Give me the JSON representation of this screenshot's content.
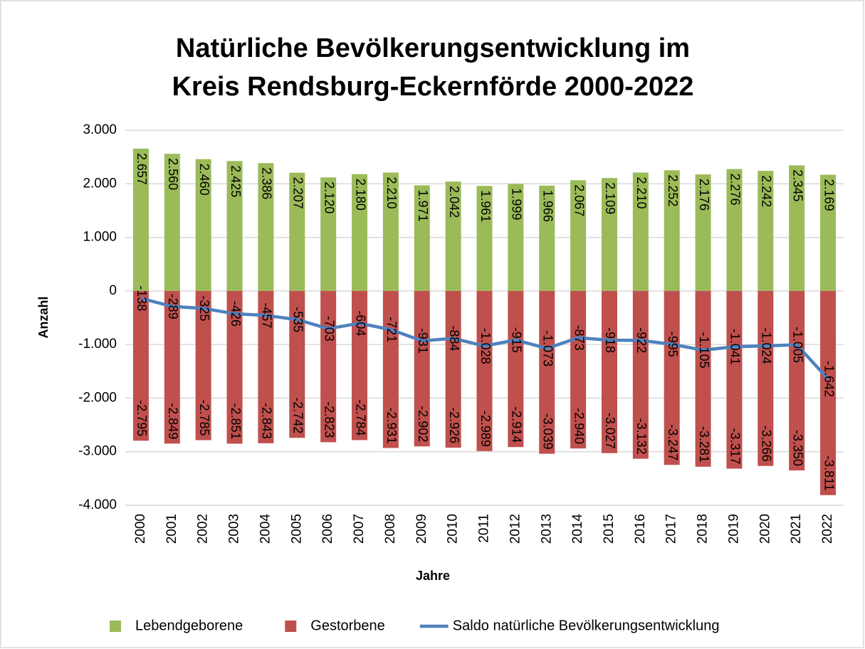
{
  "chart_data": {
    "type": "bar",
    "title": [
      "Natürliche Bevölkerungsentwicklung im",
      "Kreis Rendsburg-Eckernförde 2000-2022"
    ],
    "x_label": "Jahre",
    "y_label": "Anzahl",
    "categories": [
      "2000",
      "2001",
      "2002",
      "2003",
      "2004",
      "2005",
      "2006",
      "2007",
      "2008",
      "2009",
      "2010",
      "2011",
      "2012",
      "2013",
      "2014",
      "2015",
      "2016",
      "2017",
      "2018",
      "2019",
      "2020",
      "2021",
      "2022"
    ],
    "series": [
      {
        "name": "Lebendgeborene",
        "color": "#9bbb59",
        "type": "bar",
        "values": [
          2657,
          2560,
          2460,
          2425,
          2386,
          2207,
          2120,
          2180,
          2210,
          1971,
          2042,
          1961,
          1999,
          1966,
          2067,
          2109,
          2210,
          2252,
          2176,
          2276,
          2242,
          2345,
          2169
        ],
        "value_labels": [
          "2.657",
          "2.560",
          "2.460",
          "2.425",
          "2.386",
          "2.207",
          "2.120",
          "2.180",
          "2.210",
          "1.971",
          "2.042",
          "1.961",
          "1.999",
          "1.966",
          "2.067",
          "2.109",
          "2.210",
          "2.252",
          "2.176",
          "2.276",
          "2.242",
          "2.345",
          "2.169"
        ]
      },
      {
        "name": "Gestorbene",
        "color": "#c0504d",
        "type": "bar",
        "values": [
          -2795,
          -2849,
          -2785,
          -2851,
          -2843,
          -2742,
          -2823,
          -2784,
          -2931,
          -2902,
          -2926,
          -2989,
          -2914,
          -3039,
          -2940,
          -3027,
          -3132,
          -3247,
          -3281,
          -3317,
          -3266,
          -3350,
          -3811
        ],
        "value_labels": [
          "-2.795",
          "-2.849",
          "-2.785",
          "-2.851",
          "-2.843",
          "-2.742",
          "-2.823",
          "-2.784",
          "-2.931",
          "-2.902",
          "-2.926",
          "-2.989",
          "-2.914",
          "-3.039",
          "-2.940",
          "-3.027",
          "-3.132",
          "-3.247",
          "-3.281",
          "-3.317",
          "-3.266",
          "-3.350",
          "-3.811"
        ]
      },
      {
        "name": "Saldo natürliche Bevölkerungsentwicklung",
        "color": "#4f81bd",
        "type": "line",
        "values": [
          -138,
          -289,
          -325,
          -426,
          -457,
          -535,
          -703,
          -604,
          -721,
          -931,
          -884,
          -1028,
          -915,
          -1073,
          -873,
          -918,
          -922,
          -995,
          -1105,
          -1041,
          -1024,
          -1005,
          -1642
        ],
        "value_labels": [
          "-138",
          "-289",
          "-325",
          "-426",
          "-457",
          "-535",
          "-703",
          "-604",
          "-721",
          "-931",
          "-884",
          "-1.028",
          "-915",
          "-1.073",
          "-873",
          "-918",
          "-922",
          "-995",
          "-1.105",
          "-1.041",
          "-1.024",
          "-1.005",
          "-1.642"
        ]
      }
    ],
    "ylim": [
      -4000,
      3000
    ],
    "yticks": [
      {
        "value": -4000,
        "label": "-4.000"
      },
      {
        "value": -3000,
        "label": "-3.000"
      },
      {
        "value": -2000,
        "label": "-2.000"
      },
      {
        "value": -1000,
        "label": "-1.000"
      },
      0,
      {
        "value": 1000,
        "label": "1.000"
      },
      {
        "value": 2000,
        "label": "2.000"
      },
      {
        "value": 3000,
        "label": "3.000"
      }
    ],
    "grid": true,
    "legend": "bottom"
  }
}
